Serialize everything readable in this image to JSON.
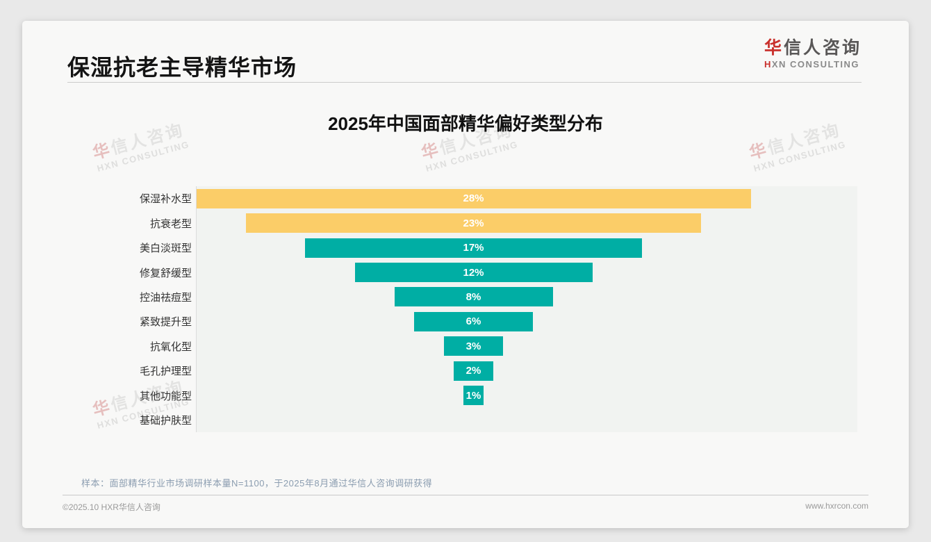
{
  "header": {
    "title": "保湿抗老主导精华市场",
    "logo": {
      "cn_first": "华",
      "cn_rest": "信人咨询",
      "en_first": "H",
      "en_rest": "XN CONSULTING"
    }
  },
  "chart_data": {
    "type": "bar",
    "orientation": "horizontal-centered-funnel",
    "title": "2025年中国面部精华偏好类型分布",
    "categories": [
      "保湿补水型",
      "抗衰老型",
      "美白淡斑型",
      "修复舒缓型",
      "控油祛痘型",
      "紧致提升型",
      "抗氧化型",
      "毛孔护理型",
      "其他功能型",
      "基础护肤型"
    ],
    "values": [
      28,
      23,
      17,
      12,
      8,
      6,
      3,
      2,
      1,
      0
    ],
    "labels": [
      "28%",
      "23%",
      "17%",
      "12%",
      "8%",
      "6%",
      "3%",
      "2%",
      "1%",
      ""
    ],
    "unit": "%",
    "xlim": [
      0,
      28
    ],
    "grid": false,
    "legend": "none",
    "colors": {
      "highlight": "#FBCD68",
      "normal": "#00AEA4",
      "highlight_count": 2
    }
  },
  "watermark": {
    "cn_first": "华",
    "cn_rest": "信人咨询",
    "en": "HXN CONSULTING"
  },
  "footer": {
    "note": "样本：面部精华行业市场调研样本量N=1100，于2025年8月通过华信人咨询调研获得",
    "copyright": "©2025.10 HXR华信人咨询",
    "website": "www.hxrcon.com"
  }
}
